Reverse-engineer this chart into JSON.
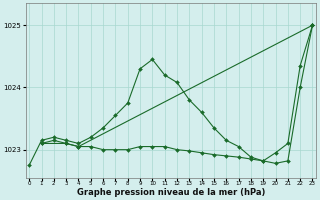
{
  "title": "Graphe pression niveau de la mer (hPa)",
  "background_color": "#d4eeed",
  "grid_color": "#a8d8d0",
  "line_color": "#1a6b2a",
  "xlim": [
    -0.3,
    23.3
  ],
  "ylim": [
    1022.55,
    1025.35
  ],
  "yticks": [
    1023,
    1024,
    1025
  ],
  "xticks": [
    0,
    1,
    2,
    3,
    4,
    5,
    6,
    7,
    8,
    9,
    10,
    11,
    12,
    13,
    14,
    15,
    16,
    17,
    18,
    19,
    20,
    21,
    22,
    23
  ],
  "series1_x": [
    0,
    1,
    2,
    3,
    4,
    5,
    6,
    7,
    8,
    9,
    10,
    11,
    12,
    13,
    14,
    15,
    16,
    17,
    18,
    19,
    20,
    21,
    22,
    23
  ],
  "series1_y": [
    1022.75,
    1023.15,
    1023.2,
    1023.15,
    1023.1,
    1023.2,
    1023.35,
    1023.55,
    1023.75,
    1024.3,
    1024.45,
    1024.2,
    1024.08,
    1023.8,
    1023.6,
    1023.35,
    1023.15,
    1023.05,
    1022.88,
    1022.82,
    1022.95,
    1023.1,
    1024.35,
    1025.0
  ],
  "series2_x": [
    1,
    2,
    3,
    4,
    5,
    6,
    7,
    8,
    9,
    10,
    11,
    12,
    13,
    14,
    15,
    16,
    17,
    18,
    19,
    20,
    21,
    22,
    23
  ],
  "series2_y": [
    1023.1,
    1023.15,
    1023.1,
    1023.05,
    1023.05,
    1023.0,
    1023.0,
    1023.0,
    1023.05,
    1023.05,
    1023.05,
    1023.0,
    1022.98,
    1022.95,
    1022.92,
    1022.9,
    1022.88,
    1022.85,
    1022.82,
    1022.78,
    1022.82,
    1024.0,
    1025.0
  ],
  "series3_x": [
    1,
    3,
    4,
    23
  ],
  "series3_y": [
    1023.1,
    1023.1,
    1023.05,
    1025.0
  ]
}
